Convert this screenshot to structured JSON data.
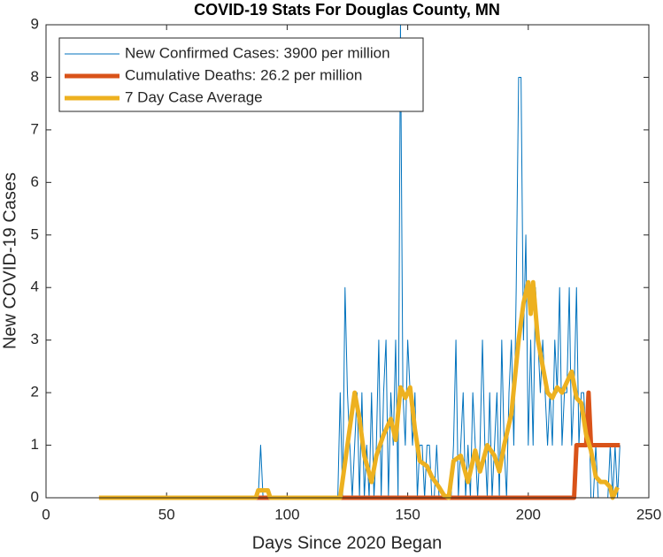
{
  "chart_data": {
    "type": "line",
    "title": "COVID-19 Stats For Douglas County, MN",
    "x_label": "Days Since 2020 Began",
    "y_label": "New COVID-19 Cases",
    "xlim": [
      0,
      250
    ],
    "xticks": [
      0,
      50,
      100,
      150,
      200,
      250
    ],
    "ylim": [
      0,
      9
    ],
    "yticks": [
      0,
      1,
      2,
      3,
      4,
      5,
      6,
      7,
      8,
      9
    ],
    "grid": false,
    "legend_position": "upper-left",
    "series": [
      {
        "name": "New Confirmed Cases: 3900 per million",
        "color": "#0072BD",
        "width": 1,
        "x": [
          22,
          88,
          89,
          90,
          121,
          122,
          123,
          124,
          125,
          126,
          127,
          128,
          129,
          130,
          131,
          132,
          133,
          134,
          135,
          136,
          137,
          138,
          139,
          140,
          141,
          142,
          143,
          144,
          145,
          146,
          147,
          148,
          149,
          150,
          151,
          152,
          153,
          154,
          155,
          156,
          157,
          158,
          159,
          160,
          161,
          162,
          163,
          164,
          165,
          166,
          167,
          168,
          169,
          170,
          171,
          172,
          173,
          174,
          175,
          176,
          177,
          178,
          179,
          180,
          181,
          182,
          183,
          184,
          185,
          186,
          187,
          188,
          189,
          190,
          191,
          192,
          193,
          194,
          195,
          196,
          197,
          198,
          199,
          200,
          201,
          202,
          203,
          204,
          205,
          206,
          207,
          208,
          209,
          210,
          211,
          212,
          213,
          214,
          215,
          216,
          217,
          218,
          219,
          220,
          221,
          222,
          223,
          224,
          225,
          226,
          227,
          228,
          229,
          230,
          231,
          232,
          233,
          234,
          235,
          236,
          237,
          238
        ],
        "values": [
          0,
          0,
          1,
          0,
          0,
          2,
          0,
          4,
          2,
          1,
          0,
          1,
          2,
          0,
          2,
          0,
          1,
          0,
          2,
          0,
          1,
          3,
          0,
          2,
          3,
          0,
          2,
          1,
          3,
          0,
          9,
          2,
          1,
          3,
          2,
          1,
          2,
          0,
          1,
          1,
          0,
          1,
          1,
          0,
          0,
          1,
          0,
          0,
          0,
          0,
          0,
          0,
          1,
          3,
          0,
          1,
          2,
          0,
          1,
          0,
          2,
          1,
          0,
          1,
          3,
          1,
          0,
          2,
          0,
          1,
          2,
          0,
          3,
          1,
          0,
          2,
          3,
          1,
          4,
          8,
          8,
          3,
          5,
          1,
          3,
          1,
          4,
          3,
          2,
          3,
          2,
          1,
          2,
          1,
          3,
          2,
          4,
          1,
          2,
          2,
          4,
          1,
          2,
          4,
          1,
          2,
          2,
          1,
          2,
          0,
          0,
          1,
          0,
          0,
          0,
          0,
          0,
          1,
          0,
          1,
          0,
          1
        ]
      },
      {
        "name": "Cumulative Deaths: 26.2 per million",
        "color": "#D95319",
        "width": 5,
        "x": [
          22,
          219,
          220,
          224,
          225,
          226,
          238
        ],
        "values": [
          0,
          0,
          1,
          1,
          2,
          1,
          1
        ]
      },
      {
        "name": "7 Day Case Average",
        "color": "#EDB120",
        "width": 5,
        "x": [
          22,
          87,
          88,
          92,
          93,
          122,
          125,
          128,
          130,
          132,
          135,
          137,
          140,
          143,
          145,
          147,
          149,
          151,
          153,
          155,
          158,
          160,
          163,
          165,
          167,
          169,
          172,
          175,
          178,
          180,
          183,
          186,
          188,
          190,
          193,
          196,
          198,
          200,
          201,
          202,
          204,
          206,
          208,
          210,
          212,
          214,
          216,
          218,
          220,
          222,
          224,
          226,
          228,
          230,
          232,
          234,
          235,
          237
        ],
        "values": [
          0,
          0,
          0.14,
          0.14,
          0,
          0,
          1,
          2,
          1.5,
          0.8,
          0.3,
          0.8,
          1.2,
          1.5,
          1.1,
          2.1,
          1.9,
          2.1,
          1.3,
          0.7,
          0.6,
          0.4,
          0.2,
          0.05,
          0,
          0.7,
          0.8,
          0.3,
          0.9,
          0.5,
          1,
          0.8,
          0.5,
          1,
          1.6,
          3,
          3.7,
          4.1,
          3.5,
          4.1,
          3,
          2.5,
          2,
          1.9,
          2.1,
          2,
          2.2,
          2.4,
          1.9,
          1.8,
          1.2,
          0.9,
          0.4,
          0.3,
          0.3,
          0.2,
          0,
          0.2
        ]
      }
    ]
  }
}
